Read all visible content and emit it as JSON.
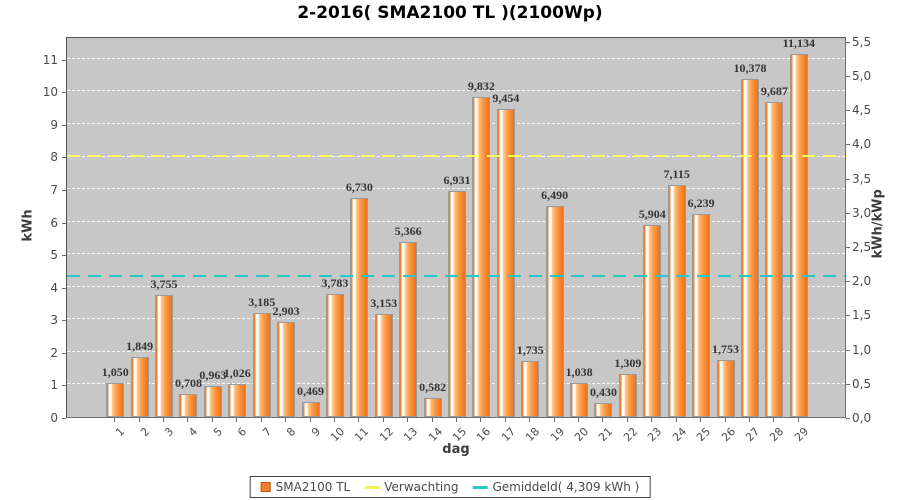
{
  "title": "2-2016( SMA2100 TL )(2100Wp)",
  "chart_data": {
    "type": "bar",
    "title": "2-2016( SMA2100 TL )(2100Wp)",
    "xlabel": "dag",
    "ylabel_left": "kWh",
    "ylabel_right": "kWh/kWp",
    "categories": [
      "1",
      "2",
      "3",
      "4",
      "5",
      "6",
      "7",
      "8",
      "9",
      "10",
      "11",
      "12",
      "13",
      "14",
      "15",
      "16",
      "17",
      "18",
      "19",
      "20",
      "21",
      "22",
      "23",
      "24",
      "25",
      "26",
      "27",
      "28",
      "29"
    ],
    "values": [
      1.05,
      1.849,
      3.755,
      0.708,
      0.963,
      1.026,
      3.185,
      2.903,
      0.469,
      3.783,
      6.73,
      3.153,
      5.366,
      0.582,
      6.931,
      9.832,
      9.454,
      1.735,
      6.49,
      1.038,
      0.43,
      1.309,
      5.904,
      7.115,
      6.239,
      1.753,
      10.378,
      9.687,
      11.134
    ],
    "bar_labels": [
      "1,050",
      "1,849",
      "3,755",
      "0,708",
      "0,963",
      "1,026",
      "3,185",
      "2,903",
      "0,469",
      "3,783",
      "6,730",
      "3,153",
      "5,366",
      "0,582",
      "6,931",
      "9,832",
      "9,454",
      "1,735",
      "6,490",
      "1,038",
      "0,430",
      "1,309",
      "5,904",
      "7,115",
      "6,239",
      "1,753",
      "10,378",
      "9,687",
      "11,134"
    ],
    "left_axis": {
      "ticks": [
        "0",
        "1",
        "2",
        "3",
        "4",
        "5",
        "6",
        "7",
        "8",
        "9",
        "10",
        "11"
      ],
      "range_kwh": [
        0,
        11.7
      ]
    },
    "right_axis": {
      "ticks": [
        "0,0",
        "0,5",
        "1,0",
        "1,5",
        "2,0",
        "2,5",
        "3,0",
        "3,5",
        "4,0",
        "4,5",
        "5,0",
        "5,5"
      ],
      "kwh_per_unit": 2.1
    },
    "grid": "horizontal white dashed at each kWh",
    "legend_position": "bottom-center",
    "reference_lines": [
      {
        "name": "Verwachting",
        "value_kwh": 7.98,
        "color": "#FCFC60",
        "style": "dashed"
      },
      {
        "name": "Gemiddeld",
        "value_kwh": 4.309,
        "color": "#28C8C8",
        "style": "dashed"
      }
    ],
    "legend": [
      {
        "label": "SMA2100 TL",
        "swatch": "square",
        "color": "#F47E2E"
      },
      {
        "label": "Verwachting",
        "swatch": "line",
        "color": "#F2F250"
      },
      {
        "label": "Gemiddeld( 4,309 kWh )",
        "swatch": "line",
        "color": "#28C8C8"
      }
    ]
  },
  "colors": {
    "plot_background": "#C7C7C7",
    "grid": "#FFFFFF",
    "bar_light": "#FFCD92",
    "bar_main": "#FB9E49",
    "bar_dark": "#EE7118",
    "bar_border": "#9A9A9A",
    "value_text": "#343434",
    "tick_text": "#4A4A4A",
    "title_text": "#000000"
  }
}
